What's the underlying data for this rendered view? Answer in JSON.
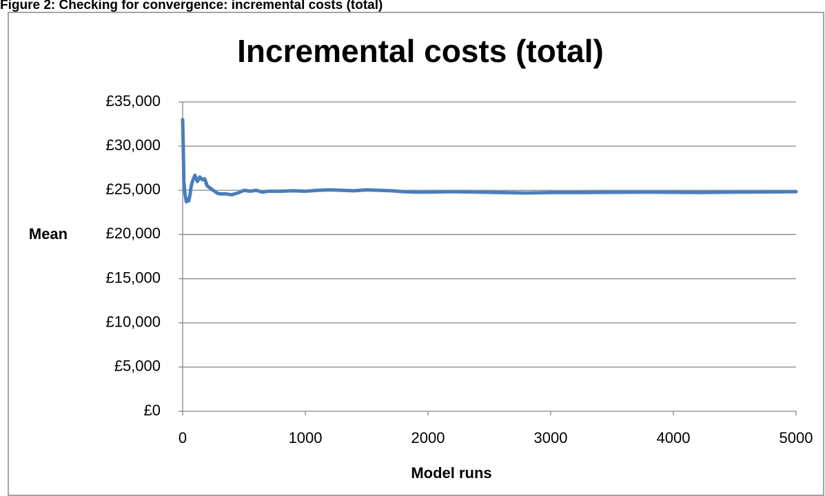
{
  "caption": "Figure 2: Checking for convergence: incremental costs (total)",
  "chart_data": {
    "type": "line",
    "title": "Incremental costs (total)",
    "x_label": "Model runs",
    "y_label": "Mean",
    "x": [
      0,
      5,
      10,
      20,
      30,
      40,
      50,
      60,
      70,
      80,
      100,
      120,
      140,
      160,
      180,
      200,
      220,
      250,
      280,
      300,
      350,
      400,
      450,
      500,
      550,
      600,
      650,
      700,
      800,
      900,
      1000,
      1100,
      1200,
      1300,
      1400,
      1500,
      1600,
      1700,
      1800,
      1900,
      2000,
      2200,
      2400,
      2600,
      2800,
      3000,
      3200,
      3500,
      3800,
      4000,
      4200,
      4500,
      4800,
      5000
    ],
    "series": [
      {
        "name": "Mean",
        "color": "#4a7ebb",
        "values": [
          33000,
          30000,
          26000,
          24500,
          23700,
          24000,
          23800,
          24500,
          25500,
          26000,
          26700,
          26000,
          26500,
          26200,
          26300,
          25500,
          25300,
          25000,
          24700,
          24600,
          24600,
          24500,
          24700,
          25000,
          24900,
          25000,
          24800,
          24900,
          24900,
          24950,
          24900,
          25000,
          25050,
          25000,
          24950,
          25050,
          25000,
          24950,
          24850,
          24800,
          24800,
          24850,
          24800,
          24750,
          24700,
          24750,
          24750,
          24780,
          24800,
          24780,
          24760,
          24800,
          24820,
          24850
        ]
      }
    ],
    "xlim": [
      0,
      5000
    ],
    "xticks": [
      0,
      1000,
      2000,
      3000,
      4000,
      5000
    ],
    "ylim": [
      0,
      35000
    ],
    "yticks": [
      {
        "value": 0,
        "label": "£0"
      },
      {
        "value": 5000,
        "label": "£5,000"
      },
      {
        "value": 10000,
        "label": "£10,000"
      },
      {
        "value": 15000,
        "label": "£15,000"
      },
      {
        "value": 20000,
        "label": "£20,000"
      },
      {
        "value": 25000,
        "label": "£25,000"
      },
      {
        "value": 30000,
        "label": "£30,000"
      },
      {
        "value": 35000,
        "label": "£35,000"
      }
    ],
    "grid": true
  }
}
